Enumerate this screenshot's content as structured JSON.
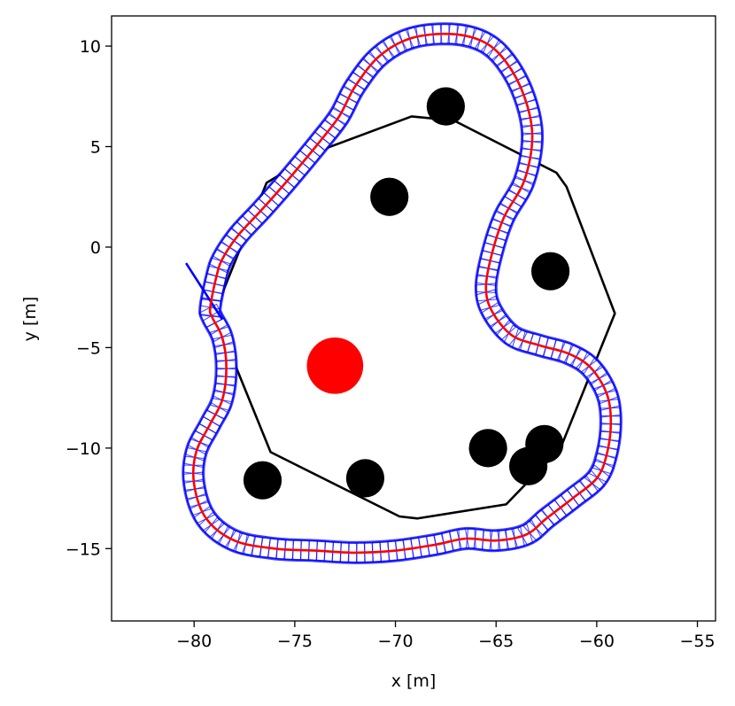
{
  "chart_data": {
    "type": "scatter",
    "title": "",
    "xlabel": "x [m]",
    "ylabel": "y [m]",
    "xlim": [
      -84.1,
      -54.1
    ],
    "ylim": [
      -18.6,
      11.5
    ],
    "xticks": [
      -80,
      -75,
      -70,
      -65,
      -60,
      -55
    ],
    "yticks": [
      10,
      5,
      0,
      -5,
      -10,
      -15
    ],
    "xtick_labels": [
      "−80",
      "−75",
      "−70",
      "−65",
      "−60",
      "−55"
    ],
    "ytick_labels": [
      "10",
      "5",
      "0",
      "−5",
      "−10",
      "−15"
    ],
    "grid": false,
    "legend": "none",
    "colors": {
      "trajectory": "#ff0000",
      "footprints": "#0000ff",
      "boundary": "#000000",
      "obstacles": "#000000",
      "target": "#ff0000"
    },
    "boundary_polygon": [
      [
        -75.9,
        3.5
      ],
      [
        -74.3,
        4.6
      ],
      [
        -69.2,
        6.5
      ],
      [
        -67.1,
        6.3
      ],
      [
        -62.0,
        3.7
      ],
      [
        -61.5,
        3.0
      ],
      [
        -59.1,
        -3.3
      ],
      [
        -61.8,
        -10.0
      ],
      [
        -64.5,
        -12.8
      ],
      [
        -68.9,
        -13.5
      ],
      [
        -69.8,
        -13.4
      ],
      [
        -76.2,
        -10.2
      ],
      [
        -79.0,
        -3.3
      ],
      [
        -76.4,
        3.2
      ]
    ],
    "trajectory": [
      [
        -79.2,
        -3.0
      ],
      [
        -78.9,
        -1.5
      ],
      [
        -78.6,
        -0.6
      ],
      [
        -77.8,
        0.6
      ],
      [
        -76.6,
        1.9
      ],
      [
        -75.2,
        3.5
      ],
      [
        -73.8,
        5.2
      ],
      [
        -72.8,
        6.5
      ],
      [
        -72.0,
        8.0
      ],
      [
        -70.8,
        9.5
      ],
      [
        -69.2,
        10.4
      ],
      [
        -67.2,
        10.6
      ],
      [
        -65.6,
        10.2
      ],
      [
        -64.5,
        9.2
      ],
      [
        -63.6,
        7.5
      ],
      [
        -63.2,
        5.5
      ],
      [
        -63.6,
        3.3
      ],
      [
        -64.6,
        1.5
      ],
      [
        -65.2,
        -0.3
      ],
      [
        -65.5,
        -2.0
      ],
      [
        -65.2,
        -3.2
      ],
      [
        -64.2,
        -4.4
      ],
      [
        -62.8,
        -4.9
      ],
      [
        -61.4,
        -5.3
      ],
      [
        -60.3,
        -6.0
      ],
      [
        -59.5,
        -7.3
      ],
      [
        -59.3,
        -8.7
      ],
      [
        -59.5,
        -10.3
      ],
      [
        -60.0,
        -11.5
      ],
      [
        -61.2,
        -12.5
      ],
      [
        -62.5,
        -13.5
      ],
      [
        -63.5,
        -14.3
      ],
      [
        -65.0,
        -14.6
      ],
      [
        -66.5,
        -14.5
      ],
      [
        -68.0,
        -14.8
      ],
      [
        -70.0,
        -15.1
      ],
      [
        -72.0,
        -15.2
      ],
      [
        -74.0,
        -15.1
      ],
      [
        -76.0,
        -15.0
      ],
      [
        -78.0,
        -14.6
      ],
      [
        -79.4,
        -13.5
      ],
      [
        -80.0,
        -11.8
      ],
      [
        -79.9,
        -10.2
      ],
      [
        -79.2,
        -8.8
      ],
      [
        -78.6,
        -7.6
      ],
      [
        -78.4,
        -6.0
      ],
      [
        -78.6,
        -4.5
      ],
      [
        -79.1,
        -3.5
      ]
    ],
    "start_heading_segment": [
      [
        -80.4,
        -0.8
      ],
      [
        -78.6,
        -3.6
      ]
    ],
    "obstacles": [
      {
        "x": -67.5,
        "y": 7.0,
        "r": 0.95
      },
      {
        "x": -70.3,
        "y": 2.5,
        "r": 0.95
      },
      {
        "x": -62.3,
        "y": -1.2,
        "r": 0.95
      },
      {
        "x": -76.6,
        "y": -11.6,
        "r": 0.95
      },
      {
        "x": -71.5,
        "y": -11.5,
        "r": 0.95
      },
      {
        "x": -65.4,
        "y": -10.0,
        "r": 0.95
      },
      {
        "x": -62.6,
        "y": -9.8,
        "r": 0.95
      },
      {
        "x": -63.4,
        "y": -10.9,
        "r": 0.95
      }
    ],
    "target": {
      "x": -73.0,
      "y": -5.9,
      "r": 1.4
    }
  }
}
